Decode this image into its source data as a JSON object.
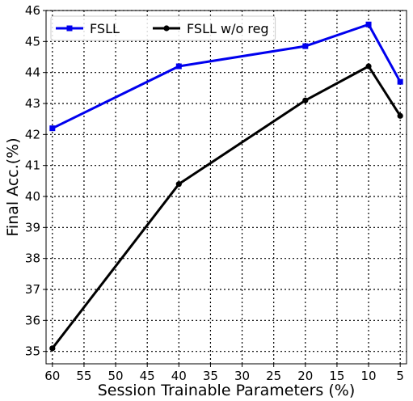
{
  "chart_data": {
    "type": "line",
    "title": "",
    "xlabel": "Session Trainable Parameters (%)",
    "ylabel": "Final Acc.(%)",
    "x_reversed": true,
    "xlim": [
      61,
      4
    ],
    "ylim": [
      34.6,
      46
    ],
    "xticks": [
      60,
      55,
      50,
      45,
      40,
      35,
      30,
      25,
      20,
      15,
      10,
      5
    ],
    "yticks": [
      35,
      36,
      37,
      38,
      39,
      40,
      41,
      42,
      43,
      44,
      45,
      46
    ],
    "grid": true,
    "legend": {
      "placement": "top-left",
      "columns": 2
    },
    "series": [
      {
        "name": "FSLL",
        "color": "#0000ee",
        "marker": "square",
        "x": [
          60,
          40,
          20,
          10,
          5
        ],
        "y": [
          42.2,
          44.2,
          44.85,
          45.55,
          43.7
        ]
      },
      {
        "name": "FSLL w/o reg",
        "color": "#000000",
        "marker": "circle",
        "x": [
          60,
          40,
          20,
          10,
          5
        ],
        "y": [
          35.1,
          40.4,
          43.1,
          44.2,
          42.6
        ]
      }
    ]
  }
}
